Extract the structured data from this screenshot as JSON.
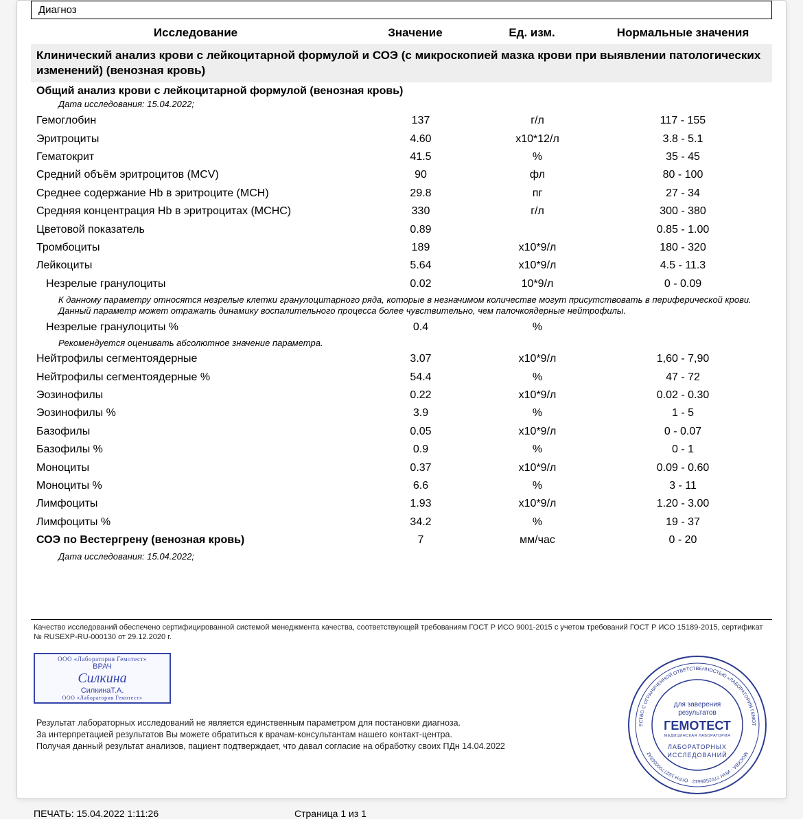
{
  "diag_label": "Диагноз",
  "headers": {
    "c1": "Исследование",
    "c2": "Значение",
    "c3": "Ед. изм.",
    "c4": "Нормальные значения"
  },
  "section1": "Клинический анализ крови с лейкоцитарной формулой и СОЭ (с микроскопией мазка крови при выявлении патологических изменений) (венозная кровь)",
  "subsection1": "Общий анализ крови с лейкоцитарной формулой (венозная кровь)",
  "date1": "Дата исследования: 15.04.2022;",
  "note1": "К данному параметру относятся незрелые клетки гранулоцитарного ряда, которые в незначимом количестве могут присутствовать в периферической крови. Данный параметр может отражать динамику воспалительного процесса более чувствительно, чем палочкоядерные нейтрофилы.",
  "note2": "Рекомендуется оценивать абсолютное значение параметра.",
  "section_esr": "СОЭ по Вестергрену (венозная кровь)",
  "date2": "Дата исследования: 15.04.2022;",
  "rows_a": [
    {
      "n": "Гемоглобин",
      "v": "137",
      "u": "г/л",
      "r": "117 - 155"
    },
    {
      "n": "Эритроциты",
      "v": "4.60",
      "u": "x10*12/л",
      "r": "3.8 - 5.1"
    },
    {
      "n": "Гематокрит",
      "v": "41.5",
      "u": "%",
      "r": "35 - 45"
    },
    {
      "n": "Средний объём эритроцитов (MCV)",
      "v": "90",
      "u": "фл",
      "r": "80 - 100"
    },
    {
      "n": "Среднее содержание Hb в эритроците (MCH)",
      "v": "29.8",
      "u": "пг",
      "r": "27 - 34"
    },
    {
      "n": "Средняя концентрация Hb в эритроцитах (MCHC)",
      "v": "330",
      "u": "г/л",
      "r": "300 - 380"
    },
    {
      "n": "Цветовой показатель",
      "v": "0.89",
      "u": "",
      "r": "0.85 - 1.00"
    },
    {
      "n": "Тромбоциты",
      "v": "189",
      "u": "x10*9/л",
      "r": "180 - 320"
    },
    {
      "n": "Лейкоциты",
      "v": "5.64",
      "u": "x10*9/л",
      "r": "4.5 - 11.3"
    },
    {
      "n": "Незрелые гранулоциты",
      "v": "0.02",
      "u": "10*9/л",
      "r": "0 - 0.09",
      "indent": true
    }
  ],
  "rows_b": [
    {
      "n": "Незрелые гранулоциты %",
      "v": "0.4",
      "u": "%",
      "r": "",
      "indent": true
    }
  ],
  "rows_c": [
    {
      "n": "Нейтрофилы сегментоядерные",
      "v": "3.07",
      "u": "x10*9/л",
      "r": "1,60 - 7,90"
    },
    {
      "n": "Нейтрофилы сегментоядерные %",
      "v": "54.4",
      "u": "%",
      "r": "47 - 72"
    },
    {
      "n": "Эозинофилы",
      "v": "0.22",
      "u": "x10*9/л",
      "r": "0.02 - 0.30"
    },
    {
      "n": "Эозинофилы %",
      "v": "3.9",
      "u": "%",
      "r": "1 - 5"
    },
    {
      "n": "Базофилы",
      "v": "0.05",
      "u": "x10*9/л",
      "r": "0 - 0.07"
    },
    {
      "n": "Базофилы %",
      "v": "0.9",
      "u": "%",
      "r": "0 - 1"
    },
    {
      "n": "Моноциты",
      "v": "0.37",
      "u": "x10*9/л",
      "r": "0.09 - 0.60"
    },
    {
      "n": "Моноциты %",
      "v": "6.6",
      "u": "%",
      "r": "3 - 11"
    },
    {
      "n": "Лимфоциты",
      "v": "1.93",
      "u": "x10*9/л",
      "r": "1.20 - 3.00"
    },
    {
      "n": "Лимфоциты %",
      "v": "34.2",
      "u": "%",
      "r": "19 - 37"
    }
  ],
  "esr_row": {
    "v": "7",
    "u": "мм/час",
    "r": "0 - 20"
  },
  "quality": "Качество исследований обеспечено сертифицированной системой менеджмента качества, соответствующей требованиям ГОСТ Р ИСО 9001-2015 с учетом требований ГОСТ Р ИСО 15189-2015, сертификат № RUSEXP-RU-000130 от 29.12.2020 г.",
  "doctor": {
    "org": "ООО «Лаборатория Гемотест»",
    "title": "ВРАЧ",
    "sign": "Силкина",
    "name": "СилкинаТ.А.",
    "org2": "ООО «Лаборатория Гемотест»"
  },
  "stamp": {
    "top": "для заверения",
    "top2": "результатов",
    "brand": "ГЕМОТЕСТ",
    "sub": "МЕДИЦИНСКАЯ ЛАБОРАТОРИЯ",
    "bot": "ЛАБОРАТОРНЫХ",
    "bot2": "ИССЛЕДОВАНИЙ",
    "ring_top": "ОБЩЕСТВО С ОГРАНИЧЕННОЙ ОТВЕТСТВЕННОСТЬЮ «ЛАБОРАТОРИЯ ГЕМОТЕСТ»",
    "ring_bot": "МОСКВА · ИНН 7702585642 · ОГРН 1027700056642"
  },
  "disclaim1": "Результат лабораторных исследований не является единственным параметром для постановки диагноза.",
  "disclaim2": "За интерпретацией результатов Вы можете обратиться к врачам-консультантам нашего контакт-центра.",
  "disclaim3": "Получая данный результат анализов, пациент подтверждает, что давал согласие на обработку своих ПДн 14.04.2022",
  "print": {
    "left": "ПЕЧАТЬ: 15.04.2022 1:11:26",
    "center": "Страница 1 из 1"
  },
  "colors": {
    "stamp": "#2a3a8f",
    "bg_gray": "#eeeeee"
  }
}
